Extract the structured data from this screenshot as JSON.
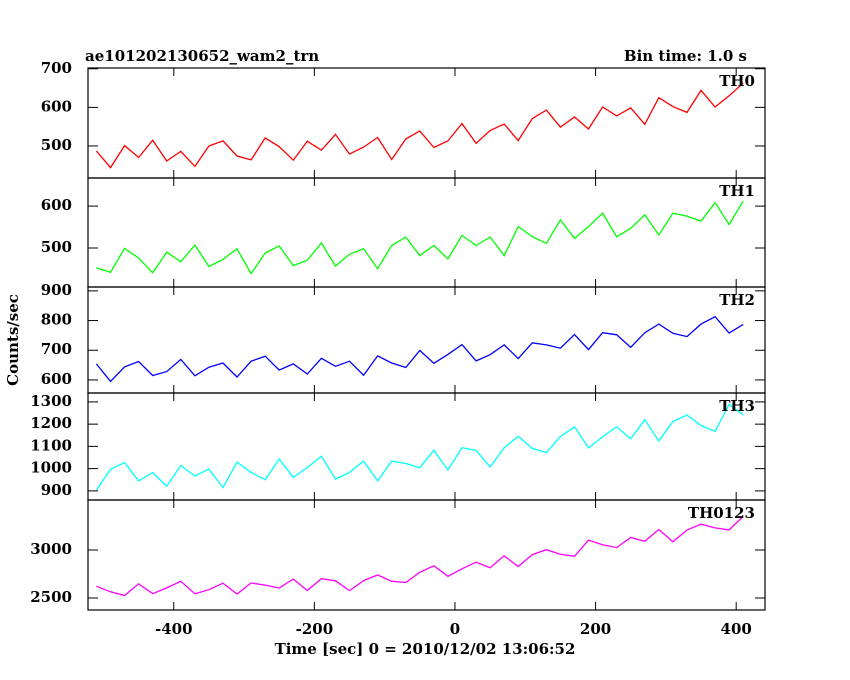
{
  "chart_data": {
    "type": "line",
    "title": "ae101202130652_wam2_trn",
    "subtitle": "Bin time: 1.0 s",
    "xlabel": "Time [sec] 0 = 2010/12/02 13:06:52",
    "ylabel": "Counts/sec",
    "xlim": [
      -522,
      441
    ],
    "xticks": [
      -400,
      -200,
      0,
      200,
      400
    ],
    "x": [
      -510,
      -490,
      -470,
      -450,
      -430,
      -410,
      -390,
      -370,
      -350,
      -330,
      -310,
      -290,
      -270,
      -250,
      -230,
      -210,
      -190,
      -170,
      -150,
      -130,
      -110,
      -90,
      -70,
      -50,
      -30,
      -10,
      10,
      30,
      50,
      70,
      90,
      110,
      130,
      150,
      170,
      190,
      210,
      230,
      250,
      270,
      290,
      310,
      330,
      350,
      370,
      390,
      410
    ],
    "panels": [
      {
        "name": "TH0",
        "color": "#ff0000",
        "ylim": [
          417,
          702
        ],
        "yticks": [
          500,
          600,
          700
        ],
        "values": [
          487,
          444,
          501,
          470,
          515,
          461,
          486,
          447,
          500,
          513,
          474,
          464,
          521,
          498,
          463,
          512,
          489,
          530,
          479,
          497,
          522,
          465,
          518,
          539,
          496,
          513,
          558,
          507,
          540,
          557,
          514,
          571,
          593,
          549,
          575,
          544,
          601,
          578,
          599,
          556,
          625,
          602,
          587,
          644,
          601,
          630,
          663
        ]
      },
      {
        "name": "TH1",
        "color": "#00ff00",
        "ylim": [
          407,
          667
        ],
        "yticks": [
          500,
          600
        ],
        "values": [
          453,
          442,
          499,
          476,
          441,
          490,
          467,
          507,
          456,
          473,
          498,
          439,
          488,
          505,
          458,
          471,
          512,
          457,
          485,
          498,
          451,
          506,
          526,
          482,
          506,
          474,
          530,
          506,
          526,
          482,
          551,
          527,
          511,
          567,
          523,
          551,
          583,
          527,
          547,
          579,
          531,
          583,
          576,
          564,
          608,
          556,
          612
        ]
      },
      {
        "name": "TH2",
        "color": "#0000ff",
        "ylim": [
          556,
          913
        ],
        "yticks": [
          600,
          700,
          800,
          900
        ],
        "values": [
          654,
          595,
          644,
          662,
          615,
          628,
          669,
          614,
          643,
          657,
          610,
          663,
          680,
          633,
          654,
          620,
          673,
          646,
          663,
          616,
          681,
          657,
          642,
          699,
          656,
          686,
          719,
          664,
          685,
          718,
          672,
          725,
          718,
          707,
          753,
          702,
          759,
          752,
          710,
          759,
          788,
          757,
          746,
          788,
          813,
          758,
          787
        ]
      },
      {
        "name": "TH3",
        "color": "#00ffff",
        "ylim": [
          859,
          1340
        ],
        "yticks": [
          900,
          1000,
          1100,
          1200,
          1300
        ],
        "values": [
          904,
          997,
          1027,
          945,
          982,
          921,
          1014,
          967,
          998,
          915,
          1029,
          983,
          950,
          1043,
          961,
          1005,
          1056,
          953,
          983,
          1034,
          945,
          1034,
          1023,
          1004,
          1083,
          994,
          1094,
          1082,
          1008,
          1094,
          1145,
          1091,
          1072,
          1144,
          1188,
          1093,
          1144,
          1188,
          1134,
          1220,
          1124,
          1211,
          1241,
          1194,
          1168,
          1289,
          1242
        ]
      },
      {
        "name": "TH0123",
        "color": "#ff00ff",
        "ylim": [
          2375,
          3521
        ],
        "yticks": [
          2500,
          3000
        ],
        "values": [
          2623,
          2565,
          2526,
          2648,
          2545,
          2605,
          2674,
          2544,
          2586,
          2654,
          2542,
          2656,
          2634,
          2603,
          2698,
          2578,
          2701,
          2679,
          2577,
          2681,
          2740,
          2674,
          2662,
          2768,
          2836,
          2726,
          2804,
          2873,
          2816,
          2940,
          2828,
          2952,
          3003,
          2955,
          2934,
          3103,
          3054,
          3025,
          3130,
          3091,
          3214,
          3086,
          3208,
          3269,
          3230,
          3209,
          3350
        ]
      }
    ]
  }
}
